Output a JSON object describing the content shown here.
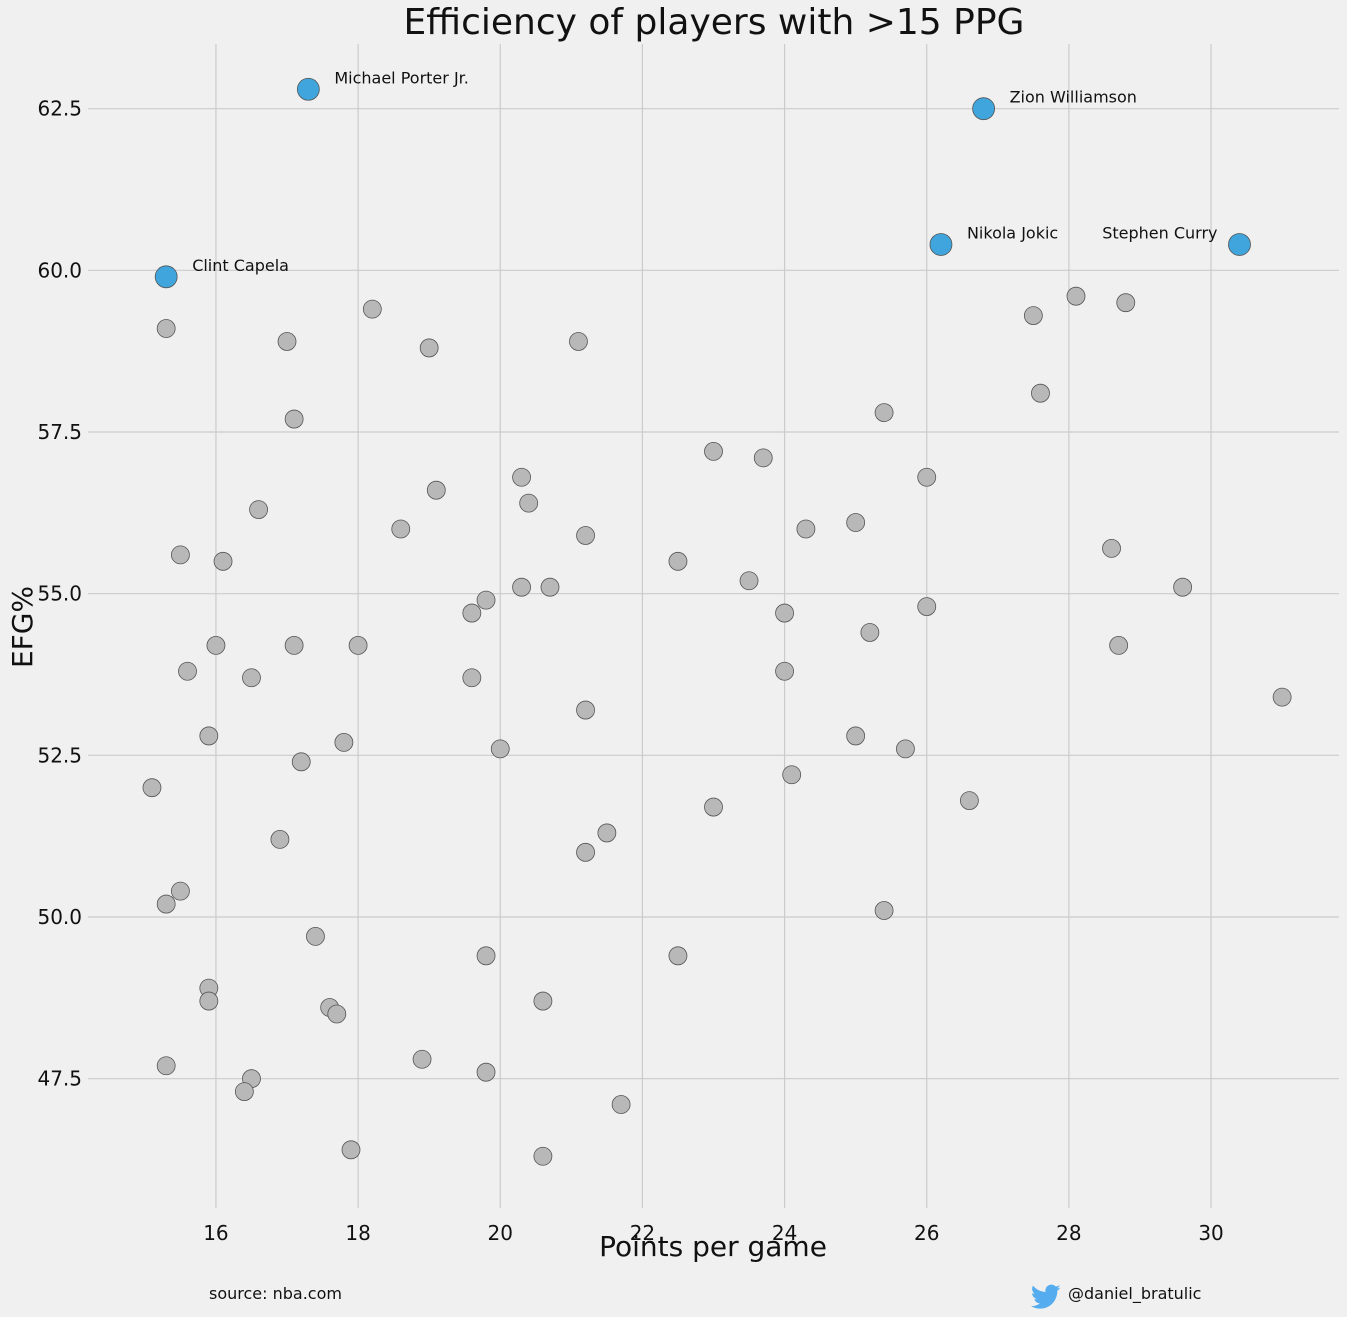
{
  "chart_data": {
    "type": "scatter",
    "title": "Efficiency of players with >15 PPG",
    "xlabel": "Points per game",
    "ylabel": "EFG%",
    "xlim": [
      14.2,
      31.8
    ],
    "ylim": [
      45.5,
      63.5
    ],
    "xticks": [
      16,
      18,
      20,
      22,
      24,
      26,
      28,
      30
    ],
    "yticks": [
      47.5,
      50.0,
      52.5,
      55.0,
      57.5,
      60.0,
      62.5
    ],
    "grid": true,
    "colors": {
      "highlight": "#3fa5dc",
      "default": "#b8b8b8",
      "edge": "#555555",
      "background": "#f0f0f0",
      "grid": "#cbcbcb"
    },
    "highlighted": [
      {
        "label": "Michael Porter Jr.",
        "x": 17.3,
        "y": 62.8
      },
      {
        "label": "Zion Williamson",
        "x": 26.8,
        "y": 62.5
      },
      {
        "label": "Nikola Jokic",
        "x": 26.2,
        "y": 60.4
      },
      {
        "label": "Stephen Curry",
        "x": 30.4,
        "y": 60.4
      },
      {
        "label": "Clint Capela",
        "x": 15.3,
        "y": 59.9
      }
    ],
    "points": [
      [
        15.3,
        59.1
      ],
      [
        17.0,
        58.9
      ],
      [
        18.2,
        59.4
      ],
      [
        19.0,
        58.8
      ],
      [
        21.1,
        58.9
      ],
      [
        17.1,
        57.7
      ],
      [
        23.0,
        57.2
      ],
      [
        23.7,
        57.1
      ],
      [
        25.4,
        57.8
      ],
      [
        27.5,
        59.3
      ],
      [
        28.1,
        59.6
      ],
      [
        28.8,
        59.5
      ],
      [
        27.6,
        58.1
      ],
      [
        16.6,
        56.3
      ],
      [
        19.1,
        56.6
      ],
      [
        20.3,
        56.8
      ],
      [
        20.4,
        56.4
      ],
      [
        18.6,
        56.0
      ],
      [
        21.2,
        55.9
      ],
      [
        24.3,
        56.0
      ],
      [
        25.0,
        56.1
      ],
      [
        26.0,
        56.8
      ],
      [
        15.5,
        55.6
      ],
      [
        16.1,
        55.5
      ],
      [
        22.5,
        55.5
      ],
      [
        23.5,
        55.2
      ],
      [
        20.3,
        55.1
      ],
      [
        20.7,
        55.1
      ],
      [
        19.6,
        54.7
      ],
      [
        19.8,
        54.9
      ],
      [
        24.0,
        54.7
      ],
      [
        26.0,
        54.8
      ],
      [
        28.6,
        55.7
      ],
      [
        29.6,
        55.1
      ],
      [
        16.0,
        54.2
      ],
      [
        17.1,
        54.2
      ],
      [
        18.0,
        54.2
      ],
      [
        25.2,
        54.4
      ],
      [
        28.7,
        54.2
      ],
      [
        15.6,
        53.8
      ],
      [
        16.5,
        53.7
      ],
      [
        19.6,
        53.7
      ],
      [
        24.0,
        53.8
      ],
      [
        21.2,
        53.2
      ],
      [
        31.0,
        53.4
      ],
      [
        15.9,
        52.8
      ],
      [
        17.8,
        52.7
      ],
      [
        17.2,
        52.4
      ],
      [
        20.0,
        52.6
      ],
      [
        25.0,
        52.8
      ],
      [
        25.7,
        52.6
      ],
      [
        15.1,
        52.0
      ],
      [
        24.1,
        52.2
      ],
      [
        23.0,
        51.7
      ],
      [
        26.6,
        51.8
      ],
      [
        16.9,
        51.2
      ],
      [
        21.5,
        51.3
      ],
      [
        21.2,
        51.0
      ],
      [
        15.5,
        50.4
      ],
      [
        15.3,
        50.2
      ],
      [
        25.4,
        50.1
      ],
      [
        17.4,
        49.7
      ],
      [
        19.8,
        49.4
      ],
      [
        22.5,
        49.4
      ],
      [
        15.9,
        48.9
      ],
      [
        15.9,
        48.7
      ],
      [
        17.6,
        48.6
      ],
      [
        17.7,
        48.5
      ],
      [
        20.6,
        48.7
      ],
      [
        18.9,
        47.8
      ],
      [
        15.3,
        47.7
      ],
      [
        16.5,
        47.5
      ],
      [
        16.4,
        47.3
      ],
      [
        19.8,
        47.6
      ],
      [
        21.7,
        47.1
      ],
      [
        17.9,
        46.4
      ],
      [
        20.6,
        46.3
      ]
    ]
  },
  "footer": {
    "source": "source: nba.com",
    "handle": "@daniel_bratulic",
    "icon": "twitter-bird-icon"
  }
}
